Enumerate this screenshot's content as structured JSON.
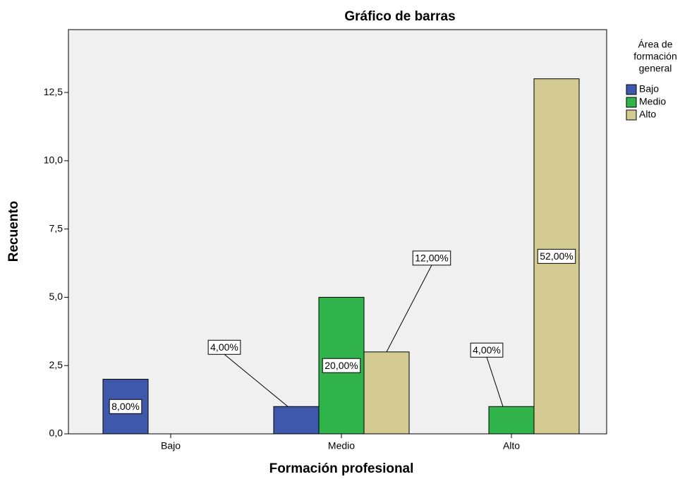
{
  "chart_data": {
    "type": "bar",
    "title": "Gráfico de barras",
    "x_label": "Formación profesional",
    "y_label": "Recuento",
    "legend_title": [
      "Área de",
      "formación",
      "general"
    ],
    "categories": [
      "Bajo",
      "Medio",
      "Alto"
    ],
    "series": [
      {
        "name": "Bajo",
        "color": "#3e58ac",
        "values": [
          2,
          1,
          null
        ],
        "percent_labels": [
          "8,00%",
          "4,00%",
          null
        ]
      },
      {
        "name": "Medio",
        "color": "#2fb34a",
        "values": [
          null,
          5,
          1
        ],
        "percent_labels": [
          null,
          "20,00%",
          "4,00%"
        ]
      },
      {
        "name": "Alto",
        "color": "#d4cb93",
        "values": [
          null,
          3,
          13
        ],
        "percent_labels": [
          null,
          "12,00%",
          "52,00%"
        ]
      }
    ],
    "ylim": [
      0,
      14.8
    ],
    "yticks": [
      {
        "value": 0,
        "label": "0,0"
      },
      {
        "value": 2.5,
        "label": "2,5"
      },
      {
        "value": 5,
        "label": "5,0"
      },
      {
        "value": 7.5,
        "label": "7,5"
      },
      {
        "value": 10,
        "label": "10,0"
      },
      {
        "value": 12.5,
        "label": "12,5"
      }
    ],
    "legend_position": "right"
  }
}
